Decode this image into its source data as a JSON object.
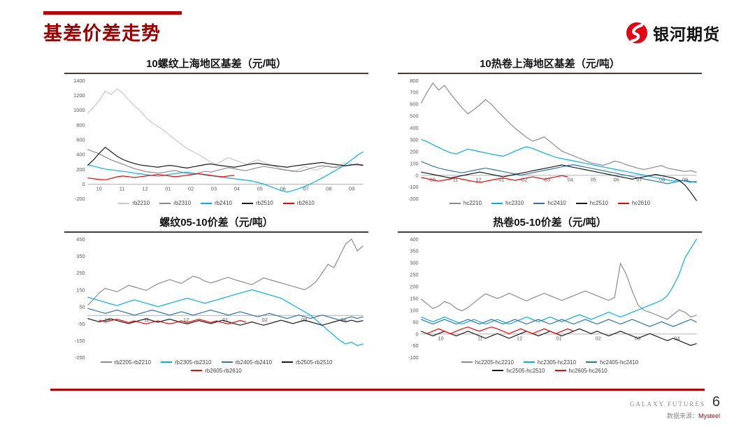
{
  "page": {
    "title": "基差价差走势",
    "logo_text": "银河期货",
    "colors": {
      "accent": "#C00000",
      "title": "#9C0000",
      "logo_red": "#E60012"
    },
    "footer": {
      "brand": "GALAXY FUTURES",
      "page_number": "6",
      "source_label": "数据来源：",
      "source_value": "Mysteel"
    }
  },
  "chart_data": [
    {
      "type": "line",
      "title": "10螺纹上海地区基差（元/吨）",
      "ylabel": "元/吨",
      "ylim": [
        -200,
        1400
      ],
      "ytick_step": 200,
      "grid": false,
      "legend_position": "bottom",
      "legend_rows": 1,
      "x_labels": [
        "10",
        "11",
        "12",
        "01",
        "02",
        "03",
        "04",
        "05",
        "06",
        "07",
        "08",
        "09"
      ],
      "series": [
        {
          "name": "rb2210",
          "color": "#c9c9c9",
          "start": 0,
          "values": [
            960,
            1040,
            1130,
            1260,
            1210,
            1290,
            1230,
            1140,
            1060,
            990,
            900,
            830,
            780,
            730,
            660,
            600,
            540,
            480,
            440,
            400,
            350,
            300,
            270,
            320,
            360,
            330,
            300,
            270,
            300,
            330,
            300,
            270,
            240,
            210,
            190,
            170,
            200,
            240,
            210,
            190,
            220,
            250,
            230,
            260,
            290,
            270,
            250,
            260
          ]
        },
        {
          "name": "rb2310",
          "color": "#8c8c8c",
          "start": 0,
          "values": [
            470,
            440,
            410,
            370,
            330,
            300,
            270,
            240,
            210,
            190,
            170,
            160,
            150,
            160,
            175,
            185,
            165,
            145,
            135,
            155,
            175,
            165,
            185,
            205,
            225,
            210,
            195,
            185,
            205,
            225,
            240,
            230,
            215,
            200,
            190,
            180,
            170,
            190,
            215,
            235,
            250,
            240,
            225,
            235,
            250,
            265,
            270,
            260
          ]
        },
        {
          "name": "rb2410",
          "color": "#00b0f0",
          "start": 0,
          "values": [
            265,
            245,
            225,
            205,
            195,
            185,
            175,
            165,
            150,
            140,
            130,
            120,
            110,
            120,
            135,
            145,
            155,
            165,
            150,
            140,
            125,
            115,
            105,
            95,
            85,
            75,
            65,
            55,
            45,
            25,
            5,
            -25,
            -55,
            -85,
            -105,
            -85,
            -60,
            -30,
            5,
            45,
            85,
            130,
            175,
            220,
            270,
            330,
            390,
            440
          ]
        },
        {
          "name": "rb2510",
          "color": "#1a1a1a",
          "start": 0,
          "values": [
            255,
            330,
            420,
            500,
            440,
            380,
            335,
            305,
            280,
            260,
            250,
            240,
            230,
            245,
            255,
            245,
            230,
            220,
            235,
            250,
            265,
            275,
            260,
            250,
            240,
            230,
            245,
            260,
            275,
            285,
            270,
            260,
            250,
            240,
            230,
            245,
            255,
            265,
            275,
            285,
            295,
            280,
            270,
            260,
            250,
            260,
            270,
            255
          ]
        },
        {
          "name": "rb2610",
          "color": "#ff0000",
          "start": 0,
          "values": [
            85,
            75,
            65,
            60,
            80,
            100,
            112,
            102,
            92,
            102,
            112,
            122,
            132,
            122,
            112,
            102,
            112,
            122,
            132,
            142,
            132,
            120,
            110,
            100,
            112,
            120
          ]
        }
      ]
    },
    {
      "type": "line",
      "title": "10热卷上海地区基差（元/吨）",
      "ylabel": "元/吨",
      "ylim": [
        -200,
        800
      ],
      "ytick_step": 100,
      "grid": false,
      "legend_position": "bottom",
      "legend_rows": 1,
      "x_labels": [
        "10",
        "11",
        "12",
        "01",
        "02",
        "03",
        "04",
        "05",
        "06",
        "07",
        "08",
        "09"
      ],
      "series": [
        {
          "name": "hc2210",
          "color": "#8c8c8c",
          "start": 0,
          "values": [
            610,
            700,
            780,
            720,
            760,
            690,
            630,
            570,
            520,
            555,
            595,
            640,
            600,
            545,
            495,
            445,
            400,
            360,
            320,
            290,
            305,
            325,
            285,
            245,
            205,
            185,
            165,
            145,
            125,
            105,
            95,
            85,
            100,
            120,
            110,
            90,
            75,
            60,
            50,
            60,
            72,
            82,
            62,
            52,
            42,
            32,
            40,
            25
          ]
        },
        {
          "name": "hc2310",
          "color": "#00b0f0",
          "start": 0,
          "values": [
            305,
            285,
            260,
            235,
            212,
            192,
            182,
            202,
            222,
            212,
            200,
            190,
            180,
            170,
            162,
            182,
            205,
            225,
            242,
            228,
            208,
            188,
            170,
            152,
            142,
            132,
            122,
            112,
            102,
            92,
            82,
            72,
            62,
            52,
            42,
            32,
            22,
            12,
            2,
            -8,
            -18,
            -28,
            -38,
            -48,
            -40,
            -50,
            -58,
            -48
          ]
        },
        {
          "name": "hc2410",
          "color": "#2e75b6",
          "start": 0,
          "values": [
            118,
            98,
            78,
            62,
            50,
            40,
            30,
            22,
            32,
            42,
            52,
            62,
            52,
            42,
            32,
            22,
            12,
            2,
            12,
            22,
            32,
            42,
            52,
            62,
            72,
            82,
            90,
            80,
            70,
            60,
            50,
            40,
            30,
            20,
            10,
            0,
            -10,
            -20,
            -30,
            -40,
            -50,
            -60,
            -70,
            -60,
            -50,
            -42,
            -52,
            -60
          ]
        },
        {
          "name": "hc2510",
          "color": "#1a1a1a",
          "start": 0,
          "values": [
            28,
            18,
            8,
            -2,
            -12,
            -22,
            -12,
            -2,
            8,
            18,
            28,
            18,
            8,
            -2,
            -12,
            -2,
            8,
            18,
            28,
            38,
            48,
            58,
            68,
            78,
            88,
            78,
            68,
            58,
            48,
            38,
            28,
            18,
            8,
            -2,
            -12,
            -22,
            -32,
            -22,
            -12,
            -2,
            8,
            -2,
            -12,
            -22,
            -42,
            -82,
            -145,
            -215
          ]
        },
        {
          "name": "hc2610",
          "color": "#ff0000",
          "start": 0,
          "values": [
            -18,
            -28,
            -38,
            -48,
            -40,
            -30,
            -22,
            -32,
            -42,
            -52,
            -60,
            -50,
            -40,
            -30,
            -22,
            -32,
            -42,
            -32,
            -22,
            -12,
            -22,
            -32,
            -22,
            -12,
            -2,
            -12
          ]
        }
      ]
    },
    {
      "type": "line",
      "title": "螺纹05-10价差（元/吨）",
      "ylabel": "元/吨",
      "ylim": [
        -250,
        450
      ],
      "ytick_step": 100,
      "grid": false,
      "legend_position": "bottom",
      "legend_rows": 2,
      "x_labels": [
        "10",
        "11",
        "12",
        "01",
        "02",
        "03",
        "04"
      ],
      "series": [
        {
          "name": "rb2205-rb2210",
          "color": "#8c8c8c",
          "start": 0,
          "values": [
            60,
            95,
            135,
            160,
            150,
            140,
            158,
            178,
            168,
            158,
            148,
            168,
            188,
            200,
            212,
            200,
            190,
            212,
            232,
            222,
            202,
            192,
            202,
            215,
            225,
            212,
            202,
            192,
            182,
            202,
            222,
            212,
            202,
            192,
            182,
            172,
            162,
            152,
            172,
            202,
            252,
            302,
            282,
            352,
            422,
            452,
            382,
            412
          ]
        },
        {
          "name": "rb2305-rb2310",
          "color": "#00b0f0",
          "start": 0,
          "values": [
            108,
            98,
            88,
            78,
            68,
            58,
            70,
            82,
            92,
            82,
            72,
            62,
            52,
            62,
            72,
            82,
            92,
            102,
            92,
            82,
            72,
            82,
            92,
            102,
            112,
            122,
            132,
            142,
            152,
            142,
            132,
            122,
            112,
            102,
            82,
            62,
            42,
            22,
            2,
            -28,
            -58,
            -88,
            -118,
            -148,
            -168,
            -158,
            -178,
            -168
          ]
        },
        {
          "name": "rb2405-rb2410",
          "color": "#2e75b6",
          "start": 0,
          "values": [
            42,
            32,
            22,
            12,
            22,
            32,
            22,
            12,
            2,
            12,
            22,
            32,
            22,
            12,
            2,
            12,
            22,
            12,
            2,
            12,
            22,
            32,
            22,
            12,
            2,
            12,
            22,
            12,
            2,
            -8,
            2,
            12,
            2,
            -8,
            -18,
            -8,
            2,
            -8,
            -18,
            -8,
            2,
            -8,
            -18,
            -28,
            -18,
            -8,
            -18,
            -8
          ]
        },
        {
          "name": "rb2505-rb2510",
          "color": "#1a1a1a",
          "start": 0,
          "values": [
            -18,
            -28,
            -38,
            -28,
            -20,
            -30,
            -40,
            -48,
            -38,
            -28,
            -20,
            -30,
            -40,
            -30,
            -22,
            -32,
            -42,
            -50,
            -40,
            -30,
            -40,
            -48,
            -38,
            -28,
            -38,
            -48,
            -58,
            -48,
            -38,
            -48,
            -58,
            -48,
            -38,
            -28,
            -38,
            -48,
            -38,
            -28,
            -38,
            -48,
            -58,
            -48,
            -38,
            -28,
            -38,
            -28,
            -38,
            -30
          ]
        },
        {
          "name": "rb2605-rb2610",
          "color": "#ff0000",
          "start": 2,
          "values": [
            -28,
            -38,
            -30,
            -22,
            -32,
            -42,
            -32,
            -42,
            -50,
            -40,
            -32,
            -42,
            -50,
            -42,
            -32,
            -42,
            -32,
            -22,
            -32,
            -42,
            -32,
            -42,
            -50,
            -40,
            -30,
            -38
          ]
        }
      ]
    },
    {
      "type": "line",
      "title": "热卷05-10价差（元/吨）",
      "ylabel": "元/吨",
      "ylim": [
        -100,
        400
      ],
      "ytick_step": 50,
      "grid": false,
      "legend_position": "bottom",
      "legend_rows": 2,
      "x_labels": [
        "10",
        "11",
        "12",
        "01",
        "02",
        "03",
        "04"
      ],
      "series": [
        {
          "name": "hc2205-hc2210",
          "color": "#8c8c8c",
          "start": 0,
          "values": [
            148,
            128,
            108,
            118,
            138,
            128,
            108,
            98,
            112,
            132,
            152,
            170,
            160,
            150,
            160,
            172,
            162,
            150,
            140,
            152,
            162,
            172,
            162,
            152,
            142,
            152,
            162,
            172,
            182,
            172,
            162,
            152,
            142,
            155,
            298,
            252,
            182,
            122,
            100,
            92,
            82,
            72,
            62,
            82,
            102,
            92,
            72,
            80
          ]
        },
        {
          "name": "hc2305-hc2310",
          "color": "#00b0f0",
          "start": 0,
          "values": [
            72,
            62,
            52,
            62,
            72,
            62,
            52,
            42,
            52,
            62,
            52,
            42,
            52,
            62,
            52,
            42,
            52,
            62,
            72,
            62,
            52,
            62,
            72,
            62,
            52,
            62,
            72,
            82,
            72,
            62,
            72,
            82,
            92,
            82,
            72,
            82,
            92,
            102,
            112,
            122,
            132,
            142,
            162,
            202,
            252,
            322,
            362,
            402
          ]
        },
        {
          "name": "hc2405-hc2410",
          "color": "#2e75b6",
          "start": 0,
          "values": [
            62,
            52,
            42,
            52,
            62,
            52,
            42,
            52,
            62,
            52,
            42,
            52,
            62,
            52,
            42,
            52,
            62,
            52,
            42,
            52,
            62,
            52,
            42,
            52,
            62,
            52,
            42,
            52,
            62,
            52,
            42,
            52,
            62,
            52,
            42,
            52,
            62,
            52,
            42,
            32,
            42,
            52,
            42,
            32,
            42,
            52,
            62,
            50
          ]
        },
        {
          "name": "hc2505-hc2510",
          "color": "#1a1a1a",
          "start": 0,
          "values": [
            12,
            2,
            -8,
            2,
            12,
            2,
            -8,
            2,
            12,
            2,
            -8,
            -18,
            -8,
            2,
            -8,
            -18,
            -8,
            2,
            12,
            2,
            -8,
            2,
            12,
            2,
            -8,
            2,
            12,
            22,
            12,
            2,
            12,
            2,
            -8,
            2,
            12,
            2,
            -8,
            -18,
            -8,
            2,
            -8,
            -18,
            -28,
            -18,
            -28,
            -38,
            -48,
            -40
          ]
        },
        {
          "name": "hc2605-hc2610",
          "color": "#ff0000",
          "start": 1,
          "values": [
            2,
            12,
            22,
            12,
            2,
            12,
            22,
            30,
            20,
            12,
            22,
            30,
            22,
            12,
            2,
            12,
            22,
            12,
            2,
            12,
            22,
            12,
            2,
            12,
            22,
            12
          ]
        }
      ]
    }
  ]
}
